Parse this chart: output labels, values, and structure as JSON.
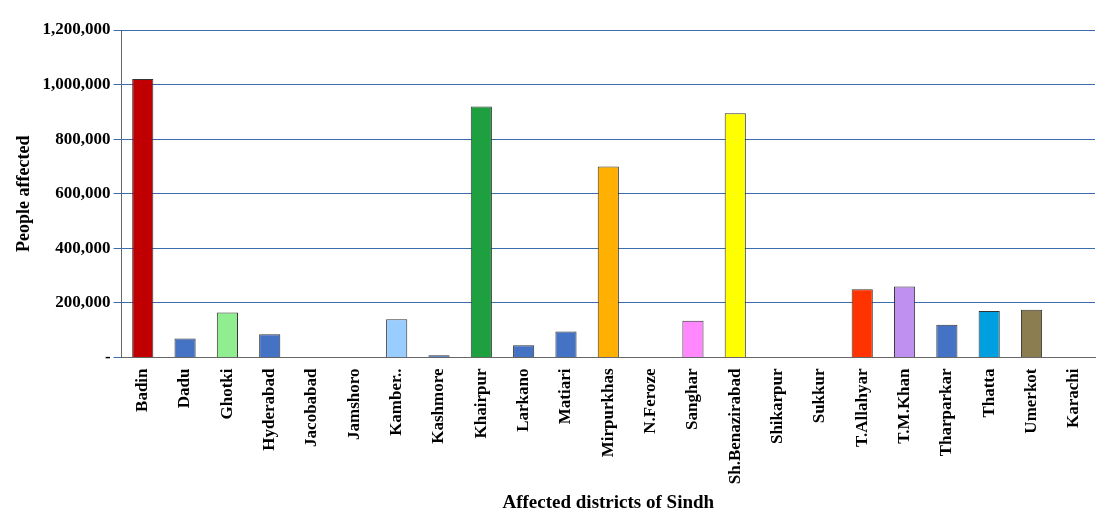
{
  "chart_data": {
    "type": "bar",
    "xlabel": "Affected districts of Sindh",
    "ylabel": "People affected",
    "categories": [
      "Badin",
      "Dadu",
      "Ghotki",
      "Hyderabad",
      "Jacobabad",
      "Jamshoro",
      "Kamber..",
      "Kashmore",
      "Khairpur",
      "Larkano",
      "Matiari",
      "Mirpurkhas",
      "N.Feroze",
      "Sanghar",
      "Sh.Benazirabad",
      "Shikarpur",
      "Sukkur",
      "T.Allahyar",
      "T.M.Khan",
      "Tharparkar",
      "Thatta",
      "Umerkot",
      "Karachi"
    ],
    "values": [
      1020000,
      70000,
      165000,
      85000,
      0,
      0,
      140000,
      8000,
      920000,
      45000,
      95000,
      700000,
      0,
      135000,
      895000,
      0,
      0,
      250000,
      260000,
      120000,
      170000,
      175000,
      0
    ],
    "colors": [
      "#c00000",
      "#4472c4",
      "#90ee90",
      "#4472c4",
      "#4472c4",
      "#4472c4",
      "#99ccff",
      "#4472c4",
      "#1fa040",
      "#4472c4",
      "#4472c4",
      "#ffb000",
      "#4472c4",
      "#ff88ff",
      "#ffff00",
      "#4472c4",
      "#4472c4",
      "#ff3300",
      "#c090f0",
      "#4472c4",
      "#00a0e0",
      "#8b7d50",
      "#4472c4"
    ],
    "ylim": [
      0,
      1200000
    ],
    "yticks": [
      {
        "value": 0,
        "label": "-"
      },
      {
        "value": 200000,
        "label": "200,000"
      },
      {
        "value": 400000,
        "label": "400,000"
      },
      {
        "value": 600000,
        "label": "600,000"
      },
      {
        "value": 800000,
        "label": "800,000"
      },
      {
        "value": 1000000,
        "label": "1,000,000"
      },
      {
        "value": 1200000,
        "label": "1,200,000"
      }
    ],
    "grid": "y",
    "legend": false
  }
}
